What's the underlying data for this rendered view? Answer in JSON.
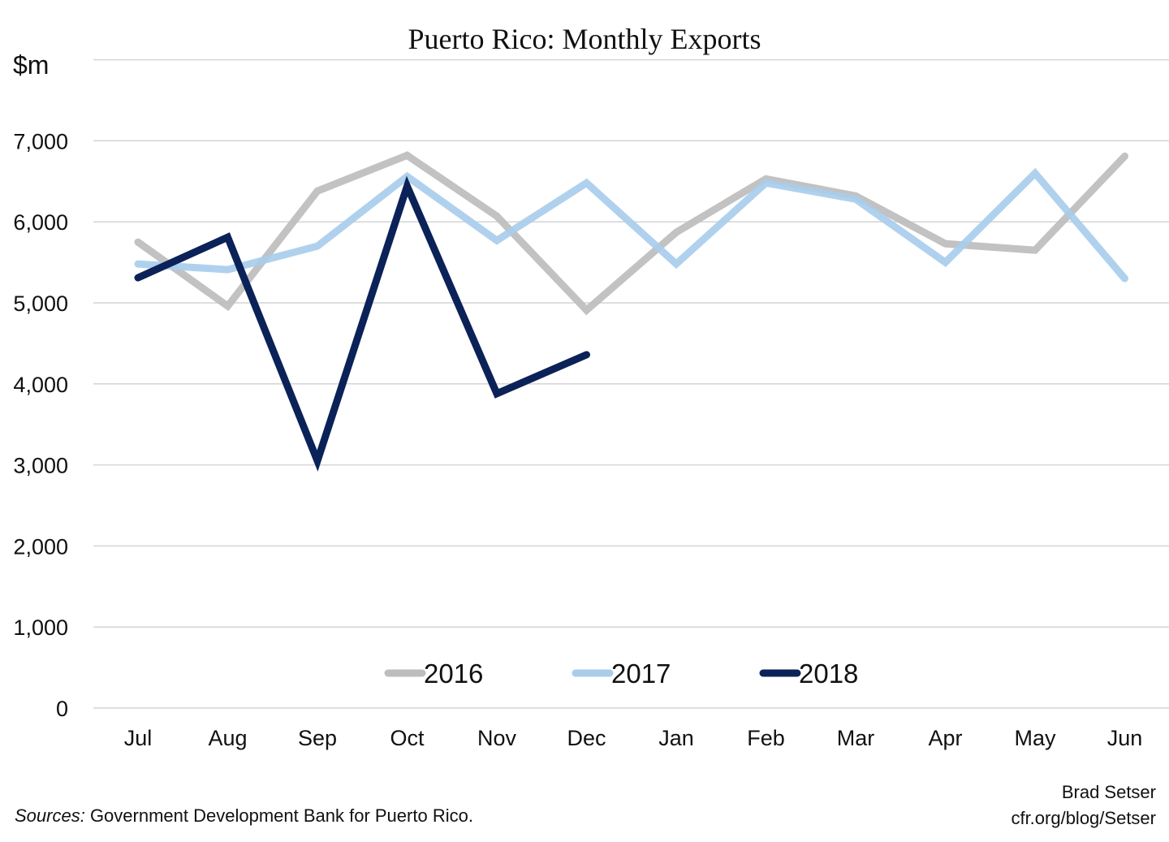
{
  "chart_data": {
    "type": "line",
    "title": "Puerto Rico: Monthly Exports",
    "ylabel": "$m",
    "xlabel": "",
    "categories": [
      "Jul",
      "Aug",
      "Sep",
      "Oct",
      "Nov",
      "Dec",
      "Jan",
      "Feb",
      "Mar",
      "Apr",
      "May",
      "Jun"
    ],
    "ylim": [
      0,
      8000
    ],
    "yticks": [
      0,
      1000,
      2000,
      3000,
      4000,
      5000,
      6000,
      7000
    ],
    "ytick_labels": [
      "0",
      "1,000",
      "2,000",
      "3,000",
      "4,000",
      "5,000",
      "6,000",
      "7,000"
    ],
    "grid": true,
    "legend_position": "bottom-center",
    "series": [
      {
        "name": "2016",
        "color": "#bdbdbd",
        "values": [
          5750,
          4960,
          6380,
          6820,
          6070,
          4910,
          5870,
          6530,
          6320,
          5730,
          5650,
          6810
        ]
      },
      {
        "name": "2017",
        "color": "#a9cdeb",
        "values": [
          5480,
          5410,
          5700,
          6560,
          5770,
          6480,
          5480,
          6480,
          6280,
          5500,
          6600,
          5300
        ]
      },
      {
        "name": "2018",
        "color": "#0b2258",
        "values": [
          5310,
          5810,
          3050,
          6440,
          3880,
          4360,
          null,
          null,
          null,
          null,
          null,
          null
        ]
      }
    ]
  },
  "footer": {
    "sources_label": "Sources:",
    "sources_text": " Government Development Bank for Puerto Rico.",
    "author": "Brad Setser",
    "url": "cfr.org/blog/Setser"
  }
}
